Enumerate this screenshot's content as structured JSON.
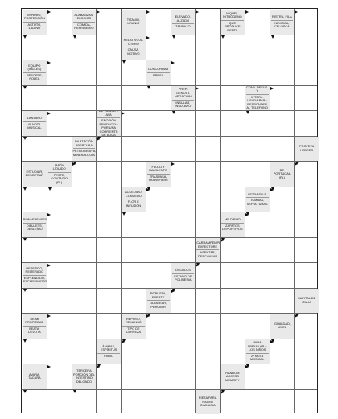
{
  "clues": [
    {
      "col": 0,
      "row": 0,
      "h": 1,
      "parts": [
        "IMPARIO, PROTECCIÓN",
        "ASTUTO, LADINO"
      ]
    },
    {
      "col": 2,
      "row": 0,
      "h": 1,
      "parts": [
        "ALABANZAS, ELOGIOS",
        "COMIDA, REFRIGERIO"
      ]
    },
    {
      "col": 4,
      "row": 0,
      "h": 1,
      "parts": [
        "TITANIO, URANIO"
      ]
    },
    {
      "col": 6,
      "row": 0,
      "h": 1,
      "parts": [
        "ELEVADO, ALZADO",
        "TANTALIO"
      ]
    },
    {
      "col": 8,
      "row": 0,
      "h": 1,
      "parts": [
        "NÍQUEL, NITRÓGENO",
        "QUE PRODUCE RENTA"
      ]
    },
    {
      "col": 10,
      "row": 0,
      "h": 1,
      "parts": [
        "RISTRA, FILA",
        "NEVISCA, CELLISCA"
      ]
    },
    {
      "col": 4,
      "row": 1,
      "h": 1,
      "parts": [
        "RELATIVO AL ÚTERO",
        "CAUSA, MOTIVO"
      ]
    },
    {
      "col": 0,
      "row": 2,
      "h": 1,
      "parts": [
        "EQUIPO (INGLÉS)",
        "RESORTE, POLEA"
      ]
    },
    {
      "col": 5,
      "row": 2,
      "h": 1,
      "parts": [
        "CONCORDAR",
        "PRESA"
      ]
    },
    {
      "col": 6,
      "row": 3,
      "h": 1,
      "parts": [
        "PREP. DENOTA NEGACIÓN",
        "INSULAR, INSULANO"
      ]
    },
    {
      "col": 9,
      "row": 3,
      "h": 1,
      "parts": [
        "CONJ. DESUS. Y",
        "INTERJ. USADA PARA RESPONDER AL TELÉFONO"
      ]
    },
    {
      "col": 0,
      "row": 4,
      "h": 1,
      "parts": [
        "LANTANO",
        "6ª NOTA MUSICAL"
      ]
    },
    {
      "col": 3,
      "row": 4,
      "h": 1,
      "parts": [
        "DE VIENTO Y AVA",
        "EROSIÓN PRODUCIDA POR UNA CORRIENTE DE AGUA"
      ]
    },
    {
      "col": 2,
      "row": 5,
      "h": 1,
      "parts": [
        "DILATACIÓN ABERTURA",
        "PETROGRAFÍA, MINERALOGÍA"
      ]
    },
    {
      "col": 11,
      "row": 5,
      "h": 1,
      "parts": [
        "PROFETA HEBREO"
      ]
    },
    {
      "col": 0,
      "row": 6,
      "h": 1,
      "parts": [
        "ESTUDIAR, DESCIFRAR"
      ]
    },
    {
      "col": 1,
      "row": 6,
      "h": 1,
      "parts": [
        "JABÓN LÍQUIDO",
        "PESTE, CONTAGIO (PL)"
      ]
    },
    {
      "col": 5,
      "row": 6,
      "h": 1,
      "parts": [
        "FLOJO Y MACILENTO",
        "TRASPASA, TRANSFIERE"
      ]
    },
    {
      "col": 10,
      "row": 6,
      "h": 1,
      "parts": [
        "DE PORTUGAL (PL)"
      ]
    },
    {
      "col": 4,
      "row": 7,
      "h": 1,
      "parts": [
        "ACCEDIDO, CONCEDO",
        "FLOR E INFUSIÓN"
      ]
    },
    {
      "col": 9,
      "row": 7,
      "h": 1,
      "parts": [
        "LETRA ELLE",
        "TUMBAS, SEPULTURAS"
      ]
    },
    {
      "col": 0,
      "row": 8,
      "h": 1,
      "parts": [
        "BONAERENSES",
        "DIBUJETS, DESLEÍDO"
      ]
    },
    {
      "col": 8,
      "row": 8,
      "h": 1,
      "parts": [
        "ME DIRIJO",
        "ZAPATOS DEPORTIVOS"
      ]
    },
    {
      "col": 7,
      "row": 9,
      "h": 1,
      "parts": [
        "CARRAMPEMPE, EXPECTORE",
        "ASENTAR, DESCANSAR"
      ]
    },
    {
      "col": 0,
      "row": 10,
      "h": 1,
      "parts": [
        "REPETIDO, REITERADO",
        "ESPLENDIDO, ESPLENDOROSO"
      ]
    },
    {
      "col": 6,
      "row": 10,
      "h": 1,
      "parts": [
        "ÓSCULOS",
        "ESTADO DE POLINESIA"
      ]
    },
    {
      "col": 5,
      "row": 11,
      "h": 1,
      "parts": [
        "ROBUSTA, FUERTE",
        "OLFATEAR, PERCIBIR"
      ]
    },
    {
      "col": 11,
      "row": 11,
      "h": 1,
      "parts": [
        "CAPITAL DE ITALIA"
      ]
    },
    {
      "col": 0,
      "row": 12,
      "h": 1,
      "parts": [
        "DE MI PROPIEDAD",
        "BEATA, DEVOTA"
      ]
    },
    {
      "col": 4,
      "row": 12,
      "h": 1,
      "parts": [
        "REPOSO, REMANSO",
        "TIPO DE CERVEZA"
      ]
    },
    {
      "col": 10,
      "row": 12,
      "h": 1,
      "parts": [
        "IGUALDAD, NIVEL"
      ]
    },
    {
      "col": 3,
      "row": 13,
      "h": 1,
      "parts": [
        "ÁNIMAS, ESPÍRITUS",
        "IRIDIO"
      ]
    },
    {
      "col": 9,
      "row": 13,
      "h": 1,
      "parts": [
        "PARA ARRULLAR A LOS NIÑOS",
        "2ª NOTA MUSICAL"
      ]
    },
    {
      "col": 0,
      "row": 14,
      "h": 1,
      "parts": [
        "AVARA, TACAÑA"
      ]
    },
    {
      "col": 2,
      "row": 14,
      "h": 1,
      "parts": [
        "TERCERA PORCIÓN DEL INTESTINO DELGADO"
      ]
    },
    {
      "col": 8,
      "row": 14,
      "h": 1,
      "parts": [
        "RANDOM ACCESS MEMORY"
      ]
    },
    {
      "col": 7,
      "row": 15,
      "h": 1,
      "parts": [
        "PIEZA PARA HACER GIMNASIA"
      ]
    }
  ]
}
